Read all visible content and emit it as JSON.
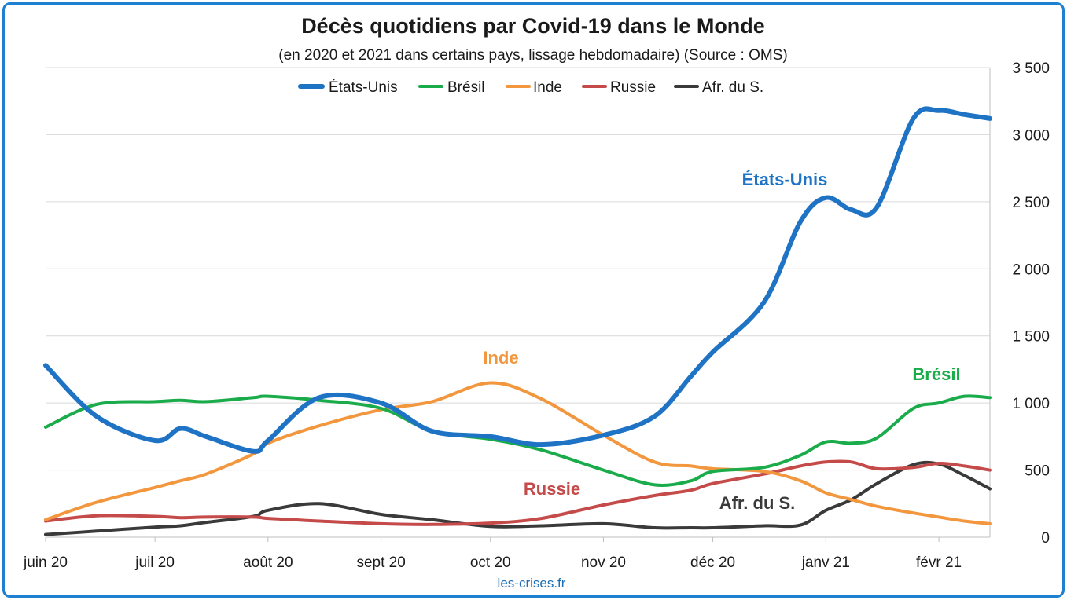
{
  "chart_data": {
    "type": "line",
    "title": "Décès quotidiens par Covid-19 dans le Monde",
    "subtitle": "(en 2020 et 2021 dans certains pays, lissage hebdomadaire) (Source : OMS)",
    "source_note": "les-crises.fr",
    "x_tick_labels": [
      "juin 20",
      "juil 20",
      "août 20",
      "sept 20",
      "oct 20",
      "nov 20",
      "déc 20",
      "janv 21",
      "févr 21"
    ],
    "y_ticks": [
      0,
      500,
      1000,
      1500,
      2000,
      2500,
      3000,
      3500
    ],
    "y_tick_labels": [
      "0",
      "500",
      "1 000",
      "1 500",
      "2 000",
      "2 500",
      "3 000",
      "3 500"
    ],
    "ylim": [
      0,
      3500
    ],
    "y_axis_side": "right",
    "grid": true,
    "legend_position": "top-center",
    "x_points": [
      "2020-06-01",
      "2020-06-15",
      "2020-07-01",
      "2020-07-08",
      "2020-07-15",
      "2020-07-28",
      "2020-08-01",
      "2020-08-15",
      "2020-09-01",
      "2020-09-15",
      "2020-10-01",
      "2020-10-15",
      "2020-11-01",
      "2020-11-15",
      "2020-11-25",
      "2020-12-01",
      "2020-12-15",
      "2020-12-25",
      "2021-01-01",
      "2021-01-08",
      "2021-01-15",
      "2021-01-25",
      "2021-02-01",
      "2021-02-08",
      "2021-02-15"
    ],
    "series": [
      {
        "name": "États-Unis",
        "color": "#1f73c4",
        "values": [
          1280,
          900,
          720,
          810,
          750,
          640,
          720,
          1040,
          1000,
          790,
          750,
          690,
          760,
          900,
          1200,
          1380,
          1750,
          2350,
          2530,
          2440,
          2460,
          3120,
          3180,
          3150,
          3120
        ]
      },
      {
        "name": "Brésil",
        "color": "#1aab4a",
        "values": [
          820,
          990,
          1010,
          1020,
          1010,
          1040,
          1050,
          1020,
          960,
          790,
          730,
          650,
          500,
          390,
          420,
          490,
          520,
          610,
          710,
          700,
          740,
          960,
          1000,
          1050,
          1040
        ]
      },
      {
        "name": "Inde",
        "color": "#f2973d",
        "values": [
          130,
          260,
          370,
          420,
          470,
          620,
          700,
          830,
          950,
          1010,
          1150,
          1030,
          760,
          560,
          530,
          510,
          490,
          420,
          330,
          280,
          230,
          180,
          150,
          120,
          100
        ]
      },
      {
        "name": "Russie",
        "color": "#c54a4a",
        "values": [
          120,
          160,
          155,
          145,
          150,
          150,
          140,
          120,
          100,
          95,
          105,
          140,
          240,
          310,
          350,
          400,
          470,
          530,
          560,
          560,
          510,
          520,
          550,
          530,
          500
        ]
      },
      {
        "name": "Afr. du S.",
        "color": "#3a3a3a",
        "values": [
          20,
          45,
          75,
          85,
          110,
          155,
          200,
          250,
          170,
          130,
          80,
          85,
          100,
          70,
          70,
          70,
          85,
          90,
          200,
          280,
          400,
          540,
          545,
          460,
          360
        ]
      }
    ],
    "annotations": [
      {
        "label": "États-Unis",
        "color": "#1f73c4"
      },
      {
        "label": "Brésil",
        "color": "#1aab4a"
      },
      {
        "label": "Inde",
        "color": "#f2973d"
      },
      {
        "label": "Russie",
        "color": "#c54a4a"
      },
      {
        "label": "Afr. du S.",
        "color": "#3a3a3a"
      }
    ]
  }
}
